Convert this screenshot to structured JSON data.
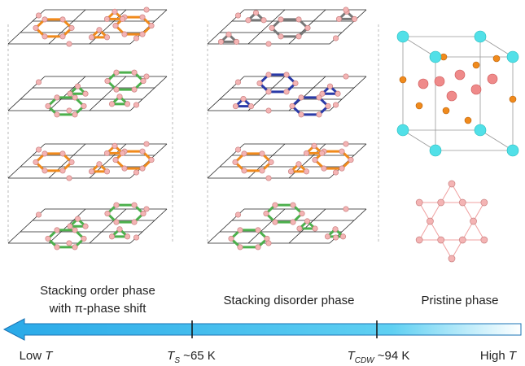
{
  "labels": {
    "ordered": [
      "Stacking order phase",
      "with π-phase shift"
    ],
    "disorder": "Stacking disorder phase",
    "pristine": "Pristine phase"
  },
  "temperature_axis": {
    "low": {
      "text": "Low ",
      "symbol": "T"
    },
    "ts": {
      "symbol": "T",
      "subscript": "S",
      "value": " ~65 K"
    },
    "tcdw": {
      "symbol": "T",
      "subscript": "CDW",
      "value": " ~94 K"
    },
    "high": {
      "text": "High ",
      "symbol": "T"
    }
  }
}
